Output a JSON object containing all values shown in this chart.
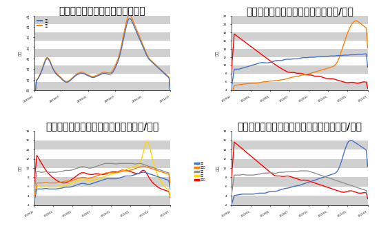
{
  "title1": "图表一：郑商所红枣期货价格走势",
  "title2": "图表二：新疆红枣现货价格走势（元/斤）",
  "title3": "图表三：红枣各产区收购价格走势（元/斤）",
  "title4": "图表四：红枣各销区现货批发价格走势（元/斤）",
  "ylabel1": "元/吨",
  "ylabel2": "元/斤",
  "ylabel3": "元/斤",
  "ylabel4": "元/斤",
  "stripe_color": "#d0d0d0",
  "line_blue": "#4472C4",
  "line_orange": "#FF7F00",
  "line_red": "#FF0000",
  "line_yellow": "#FFD700",
  "line_gray": "#909090",
  "chart1_ylim": [
    8000,
    22000
  ],
  "chart1_yticks": [
    8000,
    10000,
    12000,
    14000,
    16000,
    18000,
    20000,
    22000
  ],
  "chart2_ylim": [
    4,
    22
  ],
  "chart2_yticks": [
    4,
    6,
    8,
    10,
    12,
    14,
    16,
    18,
    20,
    22
  ],
  "chart3_ylim": [
    2,
    18
  ],
  "chart3_yticks": [
    2,
    4,
    6,
    8,
    10,
    12,
    14,
    16,
    18
  ],
  "chart4_ylim": [
    2,
    18
  ],
  "chart4_yticks": [
    2,
    4,
    6,
    8,
    10,
    12,
    14,
    16,
    18
  ]
}
